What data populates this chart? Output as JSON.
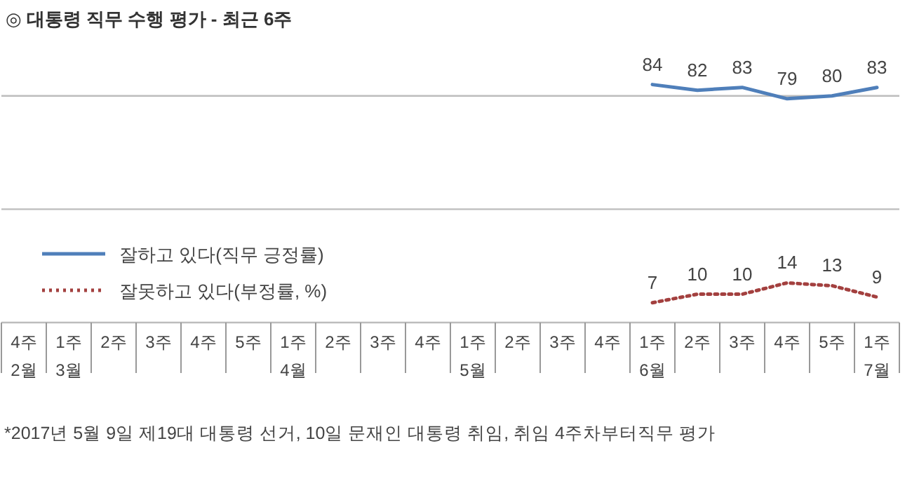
{
  "chart_data": {
    "type": "line",
    "title": "◎  대통령 직무 수행 평가 - 최근 6주",
    "categories": [
      "4주\n2월",
      "1주\n3월",
      "2주",
      "3주",
      "4주",
      "5주",
      "1주\n4월",
      "2주",
      "3주",
      "4주",
      "1주\n5월",
      "2주",
      "3주",
      "4주",
      "1주\n6월",
      "2주",
      "3주",
      "4주",
      "5주",
      "1주\n7월"
    ],
    "series": [
      {
        "name": "잘하고 있다(직무 긍정률)",
        "color": "#4f7fba",
        "line_style": "solid",
        "values": [
          null,
          null,
          null,
          null,
          null,
          null,
          null,
          null,
          null,
          null,
          null,
          null,
          null,
          null,
          84,
          82,
          83,
          79,
          80,
          83
        ]
      },
      {
        "name": "잘못하고 있다(부정률, %)",
        "color": "#a3403f",
        "line_style": "dotted",
        "values": [
          null,
          null,
          null,
          null,
          null,
          null,
          null,
          null,
          null,
          null,
          null,
          null,
          null,
          null,
          7,
          10,
          10,
          14,
          13,
          9
        ]
      }
    ],
    "ref_lines": [
      {
        "axis": "y",
        "value": 40,
        "label": null,
        "color": "#bdbdbd"
      },
      {
        "axis": "y",
        "value": 80,
        "label": null,
        "color": "#bdbdbd"
      }
    ],
    "tick_labels": "x",
    "legend": "left",
    "data_labels": true,
    "marker": "none",
    "annotations": [
      "*2017년 5월 9일 제19대 대통령 선거, 10일 문재인 대통령 취임, 취임 4주차부터직무 평가"
    ]
  }
}
